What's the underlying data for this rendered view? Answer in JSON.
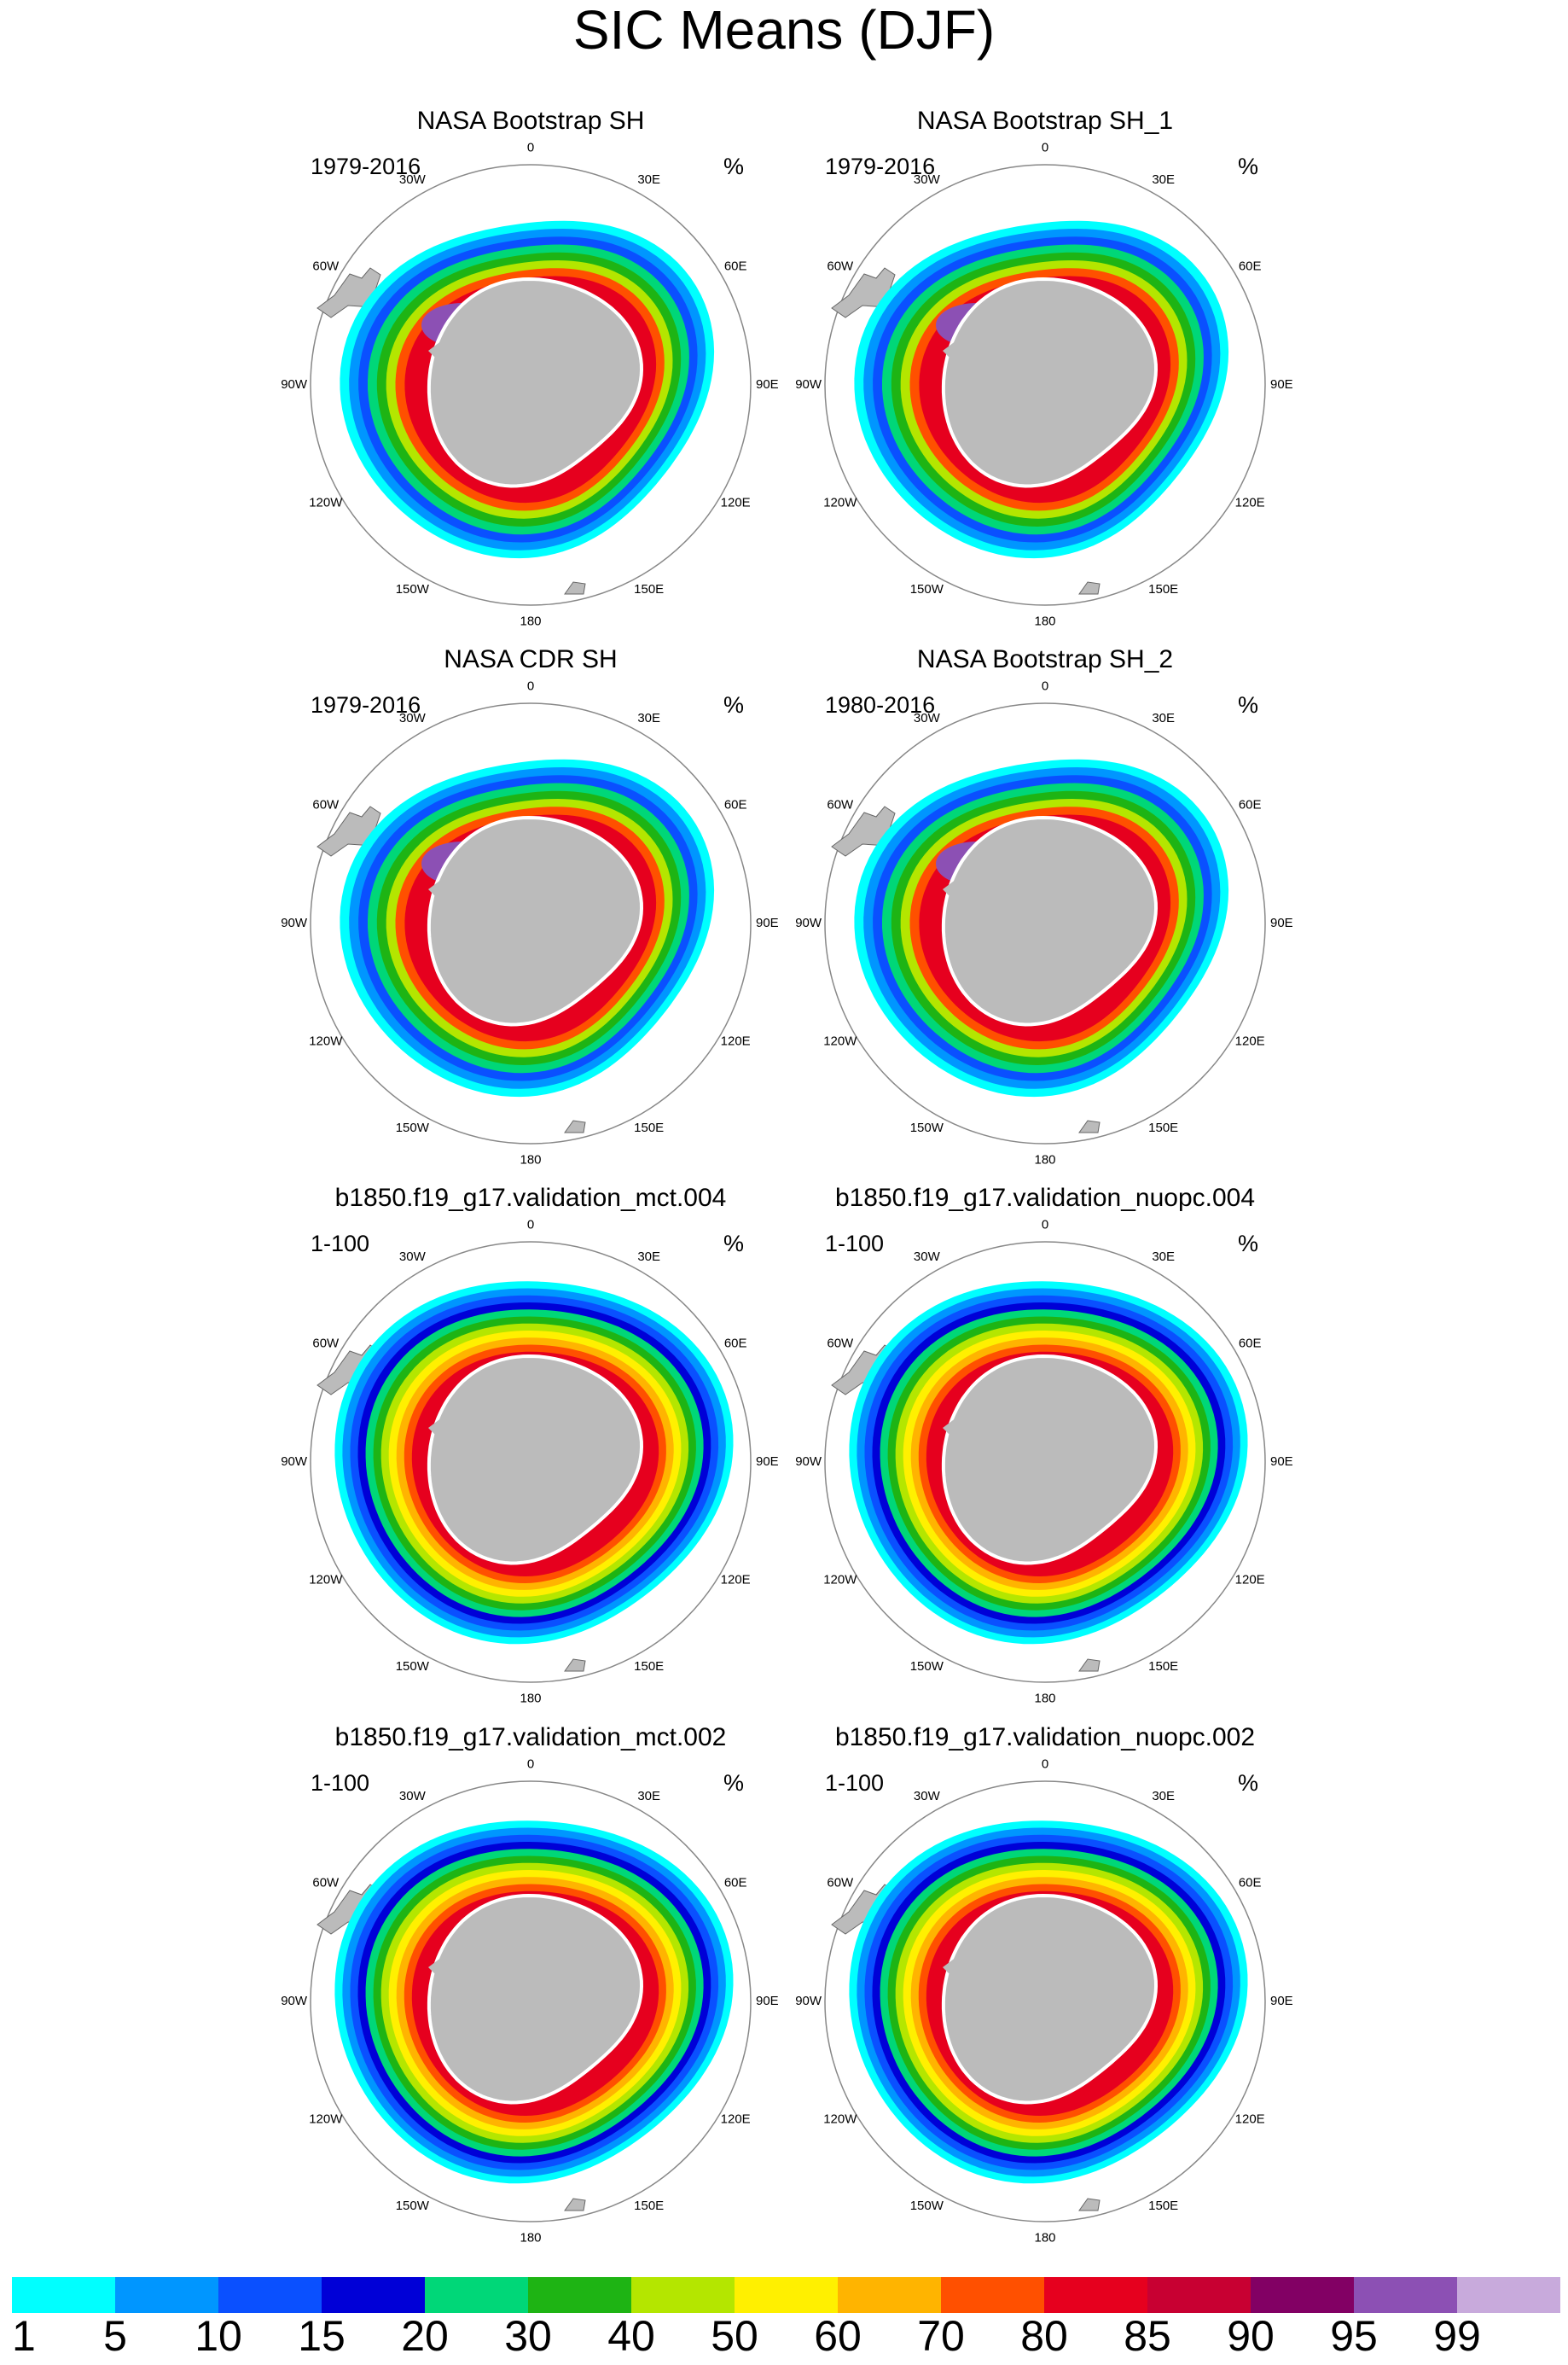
{
  "title": "SIC Means (DJF)",
  "panels": [
    {
      "title": "NASA Bootstrap SH",
      "period": "1979-2016",
      "units": "%"
    },
    {
      "title": "NASA Bootstrap SH_1",
      "period": "1979-2016",
      "units": "%"
    },
    {
      "title": "NASA CDR SH",
      "period": "1979-2016",
      "units": "%"
    },
    {
      "title": "NASA Bootstrap SH_2",
      "period": "1980-2016",
      "units": "%"
    },
    {
      "title": "b1850.f19_g17.validation_mct.004",
      "period": "1-100",
      "units": "%"
    },
    {
      "title": "b1850.f19_g17.validation_nuopc.004",
      "period": "1-100",
      "units": "%"
    },
    {
      "title": "b1850.f19_g17.validation_mct.002",
      "period": "1-100",
      "units": "%"
    },
    {
      "title": "b1850.f19_g17.validation_nuopc.002",
      "period": "1-100",
      "units": "%"
    }
  ],
  "longitude_labels": [
    "0",
    "30E",
    "60E",
    "90E",
    "120E",
    "150E",
    "180",
    "150W",
    "120W",
    "90W",
    "60W",
    "30W"
  ],
  "colorbar": {
    "levels": [
      1,
      5,
      10,
      15,
      20,
      30,
      40,
      50,
      60,
      70,
      80,
      85,
      90,
      95,
      99
    ],
    "colors": [
      "#00ffff",
      "#0096ff",
      "#0a50ff",
      "#0000d7",
      "#00d778",
      "#1eb414",
      "#b4e600",
      "#fff000",
      "#ffb400",
      "#ff5000",
      "#e6001e",
      "#c80032",
      "#820064",
      "#8c50b4",
      "#c8aadc"
    ]
  }
}
